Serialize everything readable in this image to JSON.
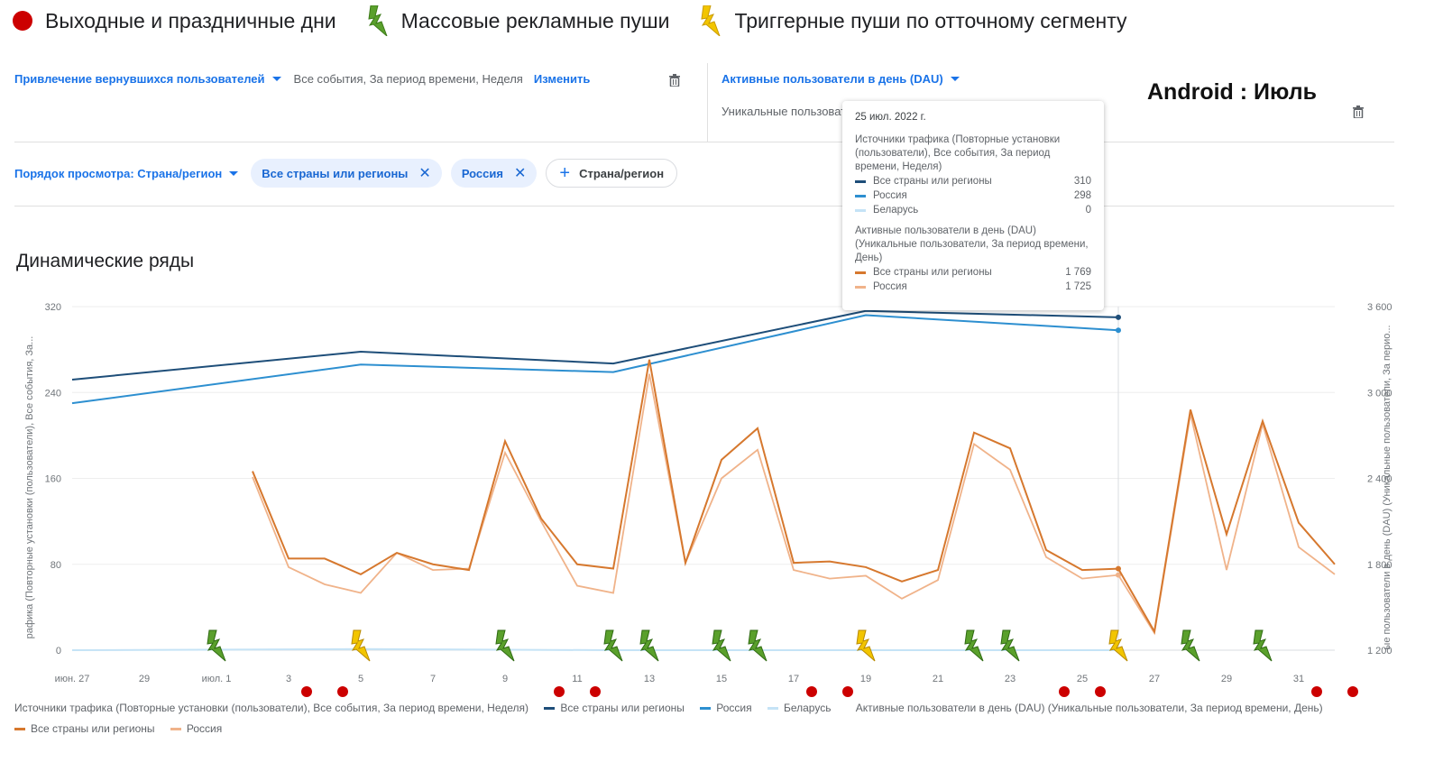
{
  "top_legend": {
    "holidays_label": "Выходные и праздничные дни",
    "mass_push_label": "Массовые рекламные пуши",
    "trigger_push_label": "Триггерные пуши по отточному сегменту"
  },
  "row1": {
    "metric_left": "Привлечение вернувшихся пользователей",
    "desc_left": "Все события, За период времени, Неделя",
    "change_link": "Изменить",
    "metric_right": "Активные пользователи в день (DAU)",
    "uniq_label": "Уникальные пользователи, За период времени, День"
  },
  "android_title": "Android : Июль",
  "row2": {
    "order_label": "Порядок просмотра: Страна/регион",
    "chip_all": "Все страны или регионы",
    "chip_russia": "Россия",
    "add_label": "Страна/регион",
    "close_glyph": "✕",
    "plus_glyph": "+"
  },
  "section_title": "Динамические ряды",
  "tooltip": {
    "date": "25 июл. 2022 г.",
    "section1": "Источники трафика (Повторные установки (пользователи), Все события, За период времени, Неделя)",
    "s1_rows": [
      {
        "name": "Все страны или регионы",
        "value": "310",
        "color": "#1e4e79"
      },
      {
        "name": "Россия",
        "value": "298",
        "color": "#2d8fd0"
      },
      {
        "name": "Беларусь",
        "value": "0",
        "color": "#c5e3f6"
      }
    ],
    "section2": "Активные пользователи в день (DAU) (Уникальные пользователи, За период времени, День)",
    "s2_rows": [
      {
        "name": "Все страны или регионы",
        "value": "1 769",
        "color": "#d6782e"
      },
      {
        "name": "Россия",
        "value": "1 725",
        "color": "#f0b38a"
      }
    ]
  },
  "bottom_legend": {
    "left_axis_title": "Источники трафика (Повторные установки (пользователи), Все события, За период времени, Неделя)",
    "left_series": [
      "Все страны или регионы",
      "Россия",
      "Беларусь"
    ],
    "right_axis_title": "Активные пользователи в день (DAU) (Уникальные пользователи, За период времени, День)",
    "right_series": [
      "Все страны или регионы",
      "Россия"
    ]
  },
  "chart_data": {
    "type": "line",
    "title": "Динамические ряды",
    "x_ticks": [
      "июн. 27",
      "29",
      "июл. 1",
      "3",
      "5",
      "7",
      "9",
      "11",
      "13",
      "15",
      "17",
      "19",
      "21",
      "23",
      "25",
      "27",
      "29",
      "31"
    ],
    "x_range_days": [
      -4,
      31
    ],
    "left_axis": {
      "label": "рафика (Повторные установки (пользователи), Все события, За...",
      "ticks": [
        "0",
        "80",
        "160",
        "240",
        "320"
      ],
      "range": [
        0,
        320
      ]
    },
    "right_axis": {
      "label": "ые пользователи в день (DAU) (Уникальные пользователи, За перио...",
      "ticks": [
        "1 200",
        "1 800",
        "2 400",
        "3 000",
        "3 600"
      ],
      "range": [
        1200,
        3600
      ]
    },
    "left_series": [
      {
        "name": "Все страны или регионы",
        "color": "#1e4e79",
        "points": [
          [
            "2022-06-27",
            252
          ],
          [
            "2022-07-04",
            278
          ],
          [
            "2022-07-11",
            267
          ],
          [
            "2022-07-18",
            316
          ],
          [
            "2022-07-25",
            310
          ]
        ]
      },
      {
        "name": "Россия",
        "color": "#2d8fd0",
        "points": [
          [
            "2022-06-27",
            230
          ],
          [
            "2022-07-04",
            266
          ],
          [
            "2022-07-11",
            259
          ],
          [
            "2022-07-18",
            312
          ],
          [
            "2022-07-25",
            298
          ]
        ]
      },
      {
        "name": "Беларусь",
        "color": "#c5e3f6",
        "points": [
          [
            "2022-06-27",
            0
          ],
          [
            "2022-07-04",
            1
          ],
          [
            "2022-07-11",
            0
          ],
          [
            "2022-07-18",
            0
          ],
          [
            "2022-07-25",
            0
          ]
        ]
      }
    ],
    "right_series": [
      {
        "name": "Все страны или регионы",
        "color": "#d6782e",
        "days": [
          1,
          2,
          3,
          4,
          5,
          6,
          7,
          8,
          9,
          10,
          11,
          12,
          13,
          14,
          15,
          16,
          17,
          18,
          19,
          20,
          21,
          22,
          23,
          24,
          25,
          26,
          27,
          28,
          29,
          30,
          31
        ],
        "values": [
          2450,
          1840,
          1840,
          1730,
          1880,
          1800,
          1760,
          2660,
          2120,
          1800,
          1770,
          3230,
          1810,
          2530,
          2750,
          1810,
          1820,
          1780,
          1680,
          1760,
          2720,
          2610,
          1900,
          1760,
          1769,
          1330,
          2880,
          2010,
          2800,
          2090,
          1800
        ]
      },
      {
        "name": "Россия",
        "color": "#f0b38a",
        "days": [
          1,
          2,
          3,
          4,
          5,
          6,
          7,
          8,
          9,
          10,
          11,
          12,
          13,
          14,
          15,
          16,
          17,
          18,
          19,
          20,
          21,
          22,
          23,
          24,
          25,
          26,
          27,
          28,
          29,
          30,
          31
        ],
        "values": [
          2410,
          1780,
          1660,
          1600,
          1880,
          1760,
          1770,
          2580,
          2100,
          1650,
          1600,
          3130,
          1810,
          2400,
          2600,
          1760,
          1700,
          1720,
          1560,
          1690,
          2640,
          2460,
          1850,
          1700,
          1725,
          1320,
          2850,
          1760,
          2780,
          1920,
          1730
        ]
      }
    ],
    "holiday_days": [
      2,
      3,
      9,
      10,
      16,
      17,
      23,
      24,
      30,
      31
    ],
    "mass_push_days": [
      0,
      8,
      11,
      12,
      14,
      15,
      21,
      22,
      27,
      29
    ],
    "trigger_push_days": [
      4,
      18,
      25
    ]
  }
}
